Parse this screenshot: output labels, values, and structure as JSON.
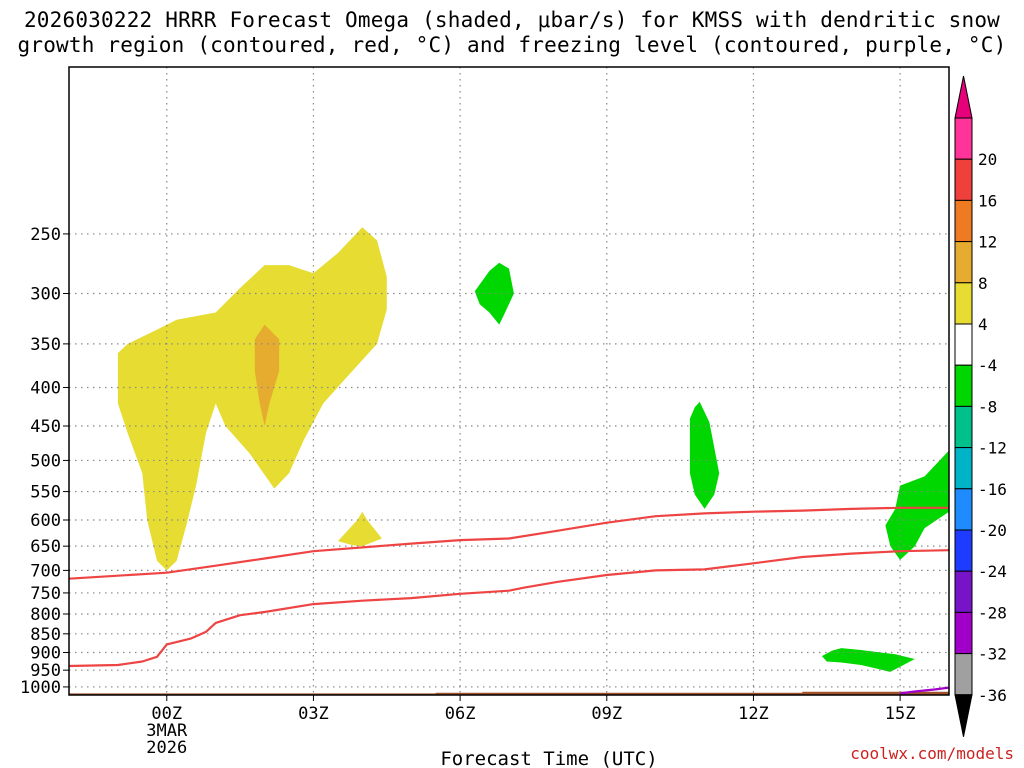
{
  "header": {
    "title_line1": "2026030222 HRRR Forecast Omega (shaded, μbar/s) for KMSS with dendritic snow",
    "title_line2": "growth region (contoured, red, °C) and freezing level (contoured, purple, °C)"
  },
  "credit": "coolwx.com/models",
  "chart_data": {
    "type": "area",
    "title": "2026030222 HRRR Forecast Omega (shaded, μbar/s) for KMSS with dendritic snow growth region (contoured, red, °C) and freezing level (contoured, purple, °C)",
    "xlabel": "Forecast Time (UTC)",
    "ylabel": "",
    "x_unit": "hours from 00Z 3MAR2026",
    "xlim": [
      -2,
      16
    ],
    "ylim_hpa": [
      1025,
      150
    ],
    "y_scale": "log-pressure",
    "grid": true,
    "x_ticks": [
      {
        "value": 0,
        "lines": [
          "00Z",
          "3MAR",
          "2026"
        ]
      },
      {
        "value": 3,
        "lines": [
          "03Z"
        ]
      },
      {
        "value": 6,
        "lines": [
          "06Z"
        ]
      },
      {
        "value": 9,
        "lines": [
          "09Z"
        ]
      },
      {
        "value": 12,
        "lines": [
          "12Z"
        ]
      },
      {
        "value": 15,
        "lines": [
          "15Z"
        ]
      }
    ],
    "y_ticks": [
      250,
      300,
      350,
      400,
      450,
      500,
      550,
      600,
      650,
      700,
      750,
      800,
      850,
      900,
      950,
      1000
    ],
    "colorbar": {
      "levels": [
        {
          "label": "20",
          "color": "#ff3399"
        },
        {
          "label": "16",
          "color": "#f0403c"
        },
        {
          "label": "12",
          "color": "#ee7a22"
        },
        {
          "label": "8",
          "color": "#e6ac30"
        },
        {
          "label": "4",
          "color": "#e6dc32"
        },
        {
          "label": "-4",
          "color": "#ffffff"
        },
        {
          "label": "-8",
          "color": "#00d700"
        },
        {
          "label": "-12",
          "color": "#00c08c"
        },
        {
          "label": "-16",
          "color": "#00b4c8"
        },
        {
          "label": "-20",
          "color": "#1e8cff"
        },
        {
          "label": "-24",
          "color": "#1e3cff"
        },
        {
          "label": "-28",
          "color": "#7814c8"
        },
        {
          "label": "-32",
          "color": "#a000c8"
        },
        {
          "label": "-36",
          "color": "#a0a0a0"
        }
      ],
      "top_arrow_color": "#e6007a",
      "bottom_arrow_color": "#000000"
    },
    "shaded_regions": [
      {
        "name": "",
        "omega_min": 4,
        "color": "#e6dc32",
        "points": [
          [
            -0.8,
            350
          ],
          [
            -0.2,
            335
          ],
          [
            0.2,
            325
          ],
          [
            1.0,
            318
          ],
          [
            1.5,
            295
          ],
          [
            2.0,
            275
          ],
          [
            2.5,
            275
          ],
          [
            3.0,
            282
          ],
          [
            3.5,
            265
          ],
          [
            4.0,
            245
          ],
          [
            4.3,
            255
          ],
          [
            4.5,
            285
          ],
          [
            4.5,
            315
          ],
          [
            4.3,
            350
          ],
          [
            3.8,
            380
          ],
          [
            3.2,
            420
          ],
          [
            2.8,
            470
          ],
          [
            2.5,
            520
          ],
          [
            2.2,
            545
          ],
          [
            1.7,
            490
          ],
          [
            1.2,
            450
          ],
          [
            1.0,
            420
          ],
          [
            0.8,
            460
          ],
          [
            0.6,
            540
          ],
          [
            0.4,
            610
          ],
          [
            0.2,
            680
          ],
          [
            0.0,
            700
          ],
          [
            -0.2,
            680
          ],
          [
            -0.4,
            600
          ],
          [
            -0.5,
            520
          ],
          [
            -0.8,
            460
          ],
          [
            -1.0,
            420
          ],
          [
            -1.0,
            360
          ]
        ]
      },
      {
        "name": "",
        "omega_min": 8,
        "color": "#e6ac30",
        "points": [
          [
            1.8,
            345
          ],
          [
            2.0,
            330
          ],
          [
            2.3,
            345
          ],
          [
            2.3,
            380
          ],
          [
            2.1,
            420
          ],
          [
            2.0,
            450
          ],
          [
            1.9,
            420
          ],
          [
            1.8,
            380
          ]
        ]
      },
      {
        "name": "",
        "omega_min": 4,
        "color": "#e6dc32",
        "points": [
          [
            3.5,
            640
          ],
          [
            3.9,
            600
          ],
          [
            4.0,
            585
          ],
          [
            4.1,
            600
          ],
          [
            4.4,
            635
          ],
          [
            4.0,
            650
          ],
          [
            3.8,
            648
          ]
        ]
      },
      {
        "name": "",
        "omega_max": -4,
        "color": "#00d700",
        "points": [
          [
            6.3,
            298
          ],
          [
            6.6,
            280
          ],
          [
            6.8,
            273
          ],
          [
            7.0,
            278
          ],
          [
            7.1,
            300
          ],
          [
            6.9,
            320
          ],
          [
            6.8,
            330
          ],
          [
            6.6,
            318
          ],
          [
            6.4,
            310
          ]
        ]
      },
      {
        "name": "",
        "omega_max": -4,
        "color": "#00d700",
        "points": [
          [
            10.7,
            440
          ],
          [
            10.8,
            425
          ],
          [
            10.9,
            418
          ],
          [
            11.1,
            445
          ],
          [
            11.3,
            520
          ],
          [
            11.2,
            555
          ],
          [
            11.0,
            580
          ],
          [
            10.8,
            555
          ],
          [
            10.7,
            520
          ]
        ]
      },
      {
        "name": "",
        "omega_max": -4,
        "color": "#00d700",
        "points": [
          [
            15.0,
            540
          ],
          [
            15.5,
            525
          ],
          [
            16.0,
            485
          ],
          [
            16.2,
            470
          ],
          [
            16.2,
            570
          ],
          [
            16.0,
            585
          ],
          [
            15.5,
            615
          ],
          [
            15.3,
            650
          ],
          [
            15.0,
            678
          ],
          [
            14.8,
            650
          ],
          [
            14.7,
            610
          ],
          [
            14.9,
            580
          ]
        ]
      },
      {
        "name": "",
        "omega_max": -4,
        "color": "#00d700",
        "points": [
          [
            13.4,
            910
          ],
          [
            13.6,
            895
          ],
          [
            13.8,
            888
          ],
          [
            14.2,
            893
          ],
          [
            14.9,
            905
          ],
          [
            15.3,
            918
          ],
          [
            15.0,
            940
          ],
          [
            14.8,
            955
          ],
          [
            14.5,
            945
          ],
          [
            14.2,
            935
          ],
          [
            13.8,
            928
          ],
          [
            13.5,
            925
          ]
        ]
      }
    ],
    "series": [
      {
        "name": "",
        "temp_c": -12,
        "color": "#ee4444",
        "x": [
          -2,
          0,
          1,
          2,
          3,
          5,
          6,
          7,
          8,
          9,
          10,
          11,
          12,
          13,
          14,
          15,
          16
        ],
        "y": [
          718,
          705,
          690,
          675,
          660,
          645,
          638,
          635,
          620,
          605,
          593,
          588,
          585,
          583,
          580,
          578,
          578
        ]
      },
      {
        "name": "",
        "temp_c": -18,
        "color": "#ee4444",
        "x": [
          -2,
          -1,
          -0.5,
          -0.2,
          0,
          0.5,
          0.8,
          1.0,
          1.5,
          2.0,
          3.0,
          4.0,
          5.0,
          6.0,
          7.0,
          7.3,
          8.0,
          9.0,
          10.0,
          11.0,
          12.0,
          13.0,
          14.0,
          15.0,
          16.0
        ],
        "y": [
          938,
          935,
          925,
          912,
          878,
          862,
          845,
          822,
          803,
          795,
          776,
          768,
          762,
          752,
          745,
          738,
          725,
          710,
          700,
          698,
          685,
          672,
          665,
          660,
          658
        ]
      },
      {
        "name": "",
        "temp_c": 0,
        "color": "#a000c8",
        "x": [
          15.0,
          15.3,
          15.7,
          16.0
        ],
        "y": [
          1020,
          1014,
          1008,
          1002
        ]
      }
    ],
    "terrain": [
      [
        -2,
        1020
      ],
      [
        5.5,
        1020
      ],
      [
        5.5,
        1018
      ],
      [
        13,
        1018
      ],
      [
        13,
        1015
      ],
      [
        16,
        1015
      ],
      [
        16,
        1025
      ],
      [
        -2,
        1025
      ]
    ],
    "terrain_color": "#a0522d"
  }
}
